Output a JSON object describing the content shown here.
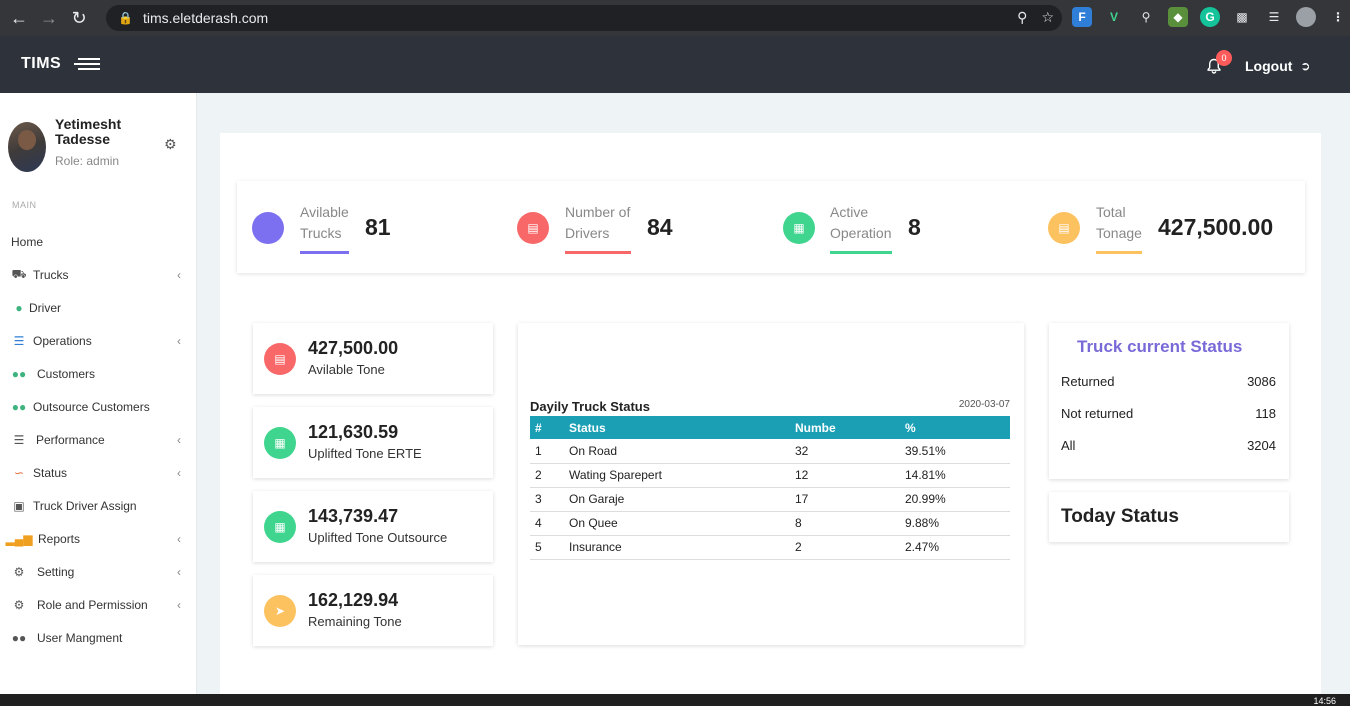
{
  "browser": {
    "url": "tims.eletderash.com",
    "profile_initial": ""
  },
  "header": {
    "brand": "TIMS",
    "notification_count": "0",
    "logout_label": "Logout"
  },
  "user": {
    "name": "Yetimesht Tadesse",
    "role": "Role: admin"
  },
  "sidebar": {
    "section_label": "MAIN",
    "items": [
      {
        "label": "Home",
        "icon": "none",
        "has_submenu": false
      },
      {
        "label": "Trucks",
        "icon": "truck-icon",
        "has_submenu": true
      },
      {
        "label": "Driver",
        "icon": "user-icon",
        "has_submenu": false
      },
      {
        "label": "Operations",
        "icon": "list-icon",
        "has_submenu": true
      },
      {
        "label": "Customers",
        "icon": "users-icon",
        "has_submenu": false
      },
      {
        "label": "Outsource Customers",
        "icon": "users-icon",
        "has_submenu": false
      },
      {
        "label": "Performance",
        "icon": "list-icon",
        "has_submenu": true
      },
      {
        "label": "Status",
        "icon": "ear-icon",
        "has_submenu": true
      },
      {
        "label": "Truck Driver Assign",
        "icon": "briefcase-icon",
        "has_submenu": false
      },
      {
        "label": "Reports",
        "icon": "bar-chart-icon",
        "has_submenu": true
      },
      {
        "label": "Setting",
        "icon": "cogs-icon",
        "has_submenu": true
      },
      {
        "label": "Role and Permission",
        "icon": "cogs-icon",
        "has_submenu": true
      },
      {
        "label": "User Mangment",
        "icon": "users-icon",
        "has_submenu": false
      }
    ]
  },
  "stats": [
    {
      "label_1": "Avilable",
      "label_2": "Trucks",
      "value": "81",
      "color": "#7c6ff0"
    },
    {
      "label_1": "Number of",
      "label_2": "Drivers",
      "value": "84",
      "color": "#f96868"
    },
    {
      "label_1": "Active",
      "label_2": "Operation",
      "value": "8",
      "color": "#3fd58e"
    },
    {
      "label_1": "Total",
      "label_2": "Tonage",
      "value": "427,500.00",
      "color": "#fdc260"
    }
  ],
  "tonnage_cards": [
    {
      "value": "427,500.00",
      "label": "Avilable Tone",
      "color": "#f96868",
      "icon": "server-icon"
    },
    {
      "value": "121,630.59",
      "label": "Uplifted Tone ERTE",
      "color": "#3fd58e",
      "icon": "calendar-icon"
    },
    {
      "value": "143,739.47",
      "label": "Uplifted Tone Outsource",
      "color": "#3fd58e",
      "icon": "calendar-icon"
    },
    {
      "value": "162,129.94",
      "label": "Remaining Tone",
      "color": "#fdc260",
      "icon": "paper-plane-icon"
    }
  ],
  "daily_status": {
    "title": "Dayily Truck Status",
    "date": "2020-03-07",
    "columns": [
      "#",
      "Status",
      "Numbe",
      "%"
    ],
    "rows": [
      [
        "1",
        "On Road",
        "32",
        "39.51%"
      ],
      [
        "2",
        "Wating Sparepert",
        "12",
        "14.81%"
      ],
      [
        "3",
        "On Garaje",
        "17",
        "20.99%"
      ],
      [
        "4",
        "On Quee",
        "8",
        "9.88%"
      ],
      [
        "5",
        "Insurance",
        "2",
        "2.47%"
      ]
    ]
  },
  "truck_status": {
    "title": "Truck current Status",
    "rows": [
      {
        "label": "Returned",
        "value": "3086"
      },
      {
        "label": "Not returned",
        "value": "118"
      },
      {
        "label": "All",
        "value": "3204"
      }
    ]
  },
  "today_status": {
    "title": "Today Status"
  },
  "taskbar": {
    "clock": "14:56"
  }
}
